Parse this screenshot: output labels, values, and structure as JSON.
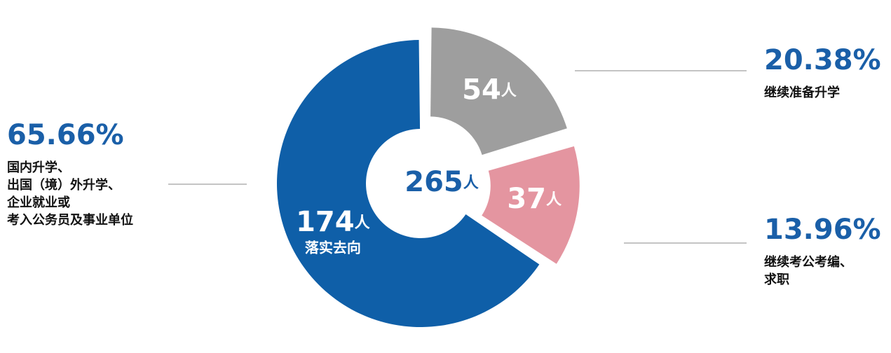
{
  "chart_data": {
    "type": "donut",
    "unit": "人",
    "total": 265,
    "series": [
      {
        "categories": [
          [
            "国内升学、",
            "出国（境）外升学、",
            "企业就业或",
            "考入公务员及事业单位"
          ],
          [
            "继续准备升学"
          ],
          [
            "继续考公考编、",
            "求职"
          ]
        ],
        "values": [
          174,
          54,
          37
        ],
        "percentages": [
          65.66,
          20.38,
          13.96
        ],
        "percentage_labels": [
          "65.66%",
          "20.38%",
          "13.96%"
        ],
        "slice_notes": [
          "落实去向",
          null,
          null
        ],
        "colors": [
          "#0f5fa8",
          "#9e9e9e",
          "#e495a0"
        ]
      }
    ]
  }
}
